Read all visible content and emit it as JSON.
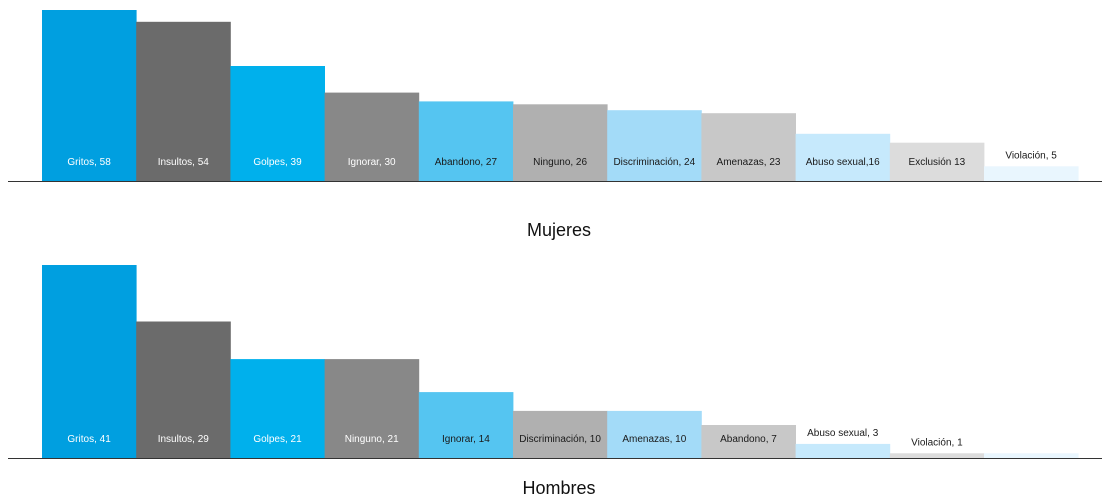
{
  "chart_data": [
    {
      "type": "bar",
      "title": "Mujeres",
      "categories": [
        "Gritos",
        "Insultos",
        "Golpes",
        "Ignorar",
        "Abandono",
        "Ninguno",
        "Discriminación",
        "Amenazas",
        "Abuso sexual",
        "Exclusión",
        "Violación"
      ],
      "values": [
        58,
        54,
        39,
        30,
        27,
        26,
        24,
        23,
        16,
        13,
        5
      ],
      "data_labels": [
        "Gritos, 58",
        "Insultos, 54",
        "Golpes, 39",
        "Ignorar, 30",
        "Abandono, 27",
        "Ninguno, 26",
        "Discriminación, 24",
        "Amenazas, 23",
        "Abuso sexual,16",
        "Exclusión 13",
        "Violación, 5"
      ],
      "colors": [
        "#009fe0",
        "#6b6b6b",
        "#00b0ec",
        "#888888",
        "#55c5f1",
        "#b0b0b0",
        "#a3dbf8",
        "#c8c8c8",
        "#c6e9fc",
        "#dcdcdc",
        "#e9f6fe"
      ],
      "label_colors": [
        "#ffffff",
        "#ffffff",
        "#ffffff",
        "#ffffff",
        "#1a1a1a",
        "#1a1a1a",
        "#1a1a1a",
        "#1a1a1a",
        "#1a1a1a",
        "#1a1a1a",
        "#1a1a1a"
      ],
      "ylim": [
        0,
        58
      ],
      "grid": false,
      "legend": "none"
    },
    {
      "type": "bar",
      "title": "Hombres",
      "categories": [
        "Gritos",
        "Insultos",
        "Golpes",
        "Ninguno",
        "Ignorar",
        "Discriminación",
        "Amenazas",
        "Abandono",
        "Abuso sexual",
        "Violación",
        ""
      ],
      "values": [
        41,
        29,
        21,
        21,
        14,
        10,
        10,
        7,
        3,
        1,
        1
      ],
      "data_labels": [
        "Gritos, 41",
        "Insultos, 29",
        "Golpes, 21",
        "Ninguno, 21",
        "Ignorar, 14",
        "Discriminación, 10",
        "Amenazas, 10",
        "Abandono, 7",
        "Abuso sexual, 3",
        "Violación, 1",
        ""
      ],
      "colors": [
        "#009fe0",
        "#6b6b6b",
        "#00b0ec",
        "#888888",
        "#55c5f1",
        "#b0b0b0",
        "#a3dbf8",
        "#c8c8c8",
        "#c6e9fc",
        "#dcdcdc",
        "#e9f6fe"
      ],
      "label_colors": [
        "#ffffff",
        "#ffffff",
        "#ffffff",
        "#ffffff",
        "#1a1a1a",
        "#1a1a1a",
        "#1a1a1a",
        "#1a1a1a",
        "#1a1a1a",
        "#1a1a1a",
        "#1a1a1a"
      ],
      "ylim": [
        0,
        41
      ],
      "grid": false,
      "legend": "none"
    }
  ]
}
